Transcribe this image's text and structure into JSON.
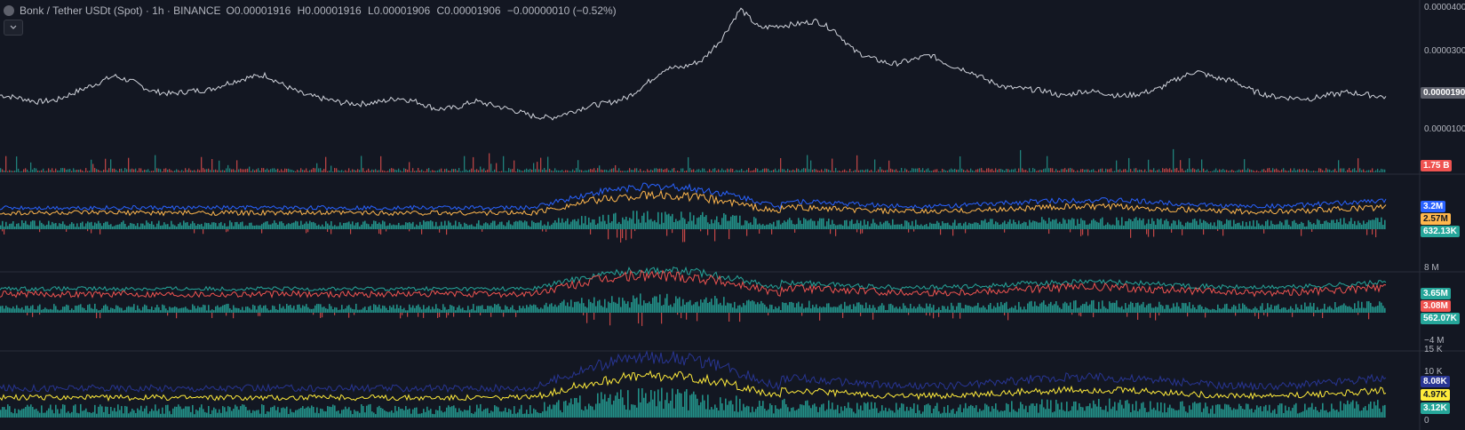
{
  "legend": {
    "title": "Bonk / Tether USDt (Spot) · 1h · BINANCE",
    "open_label": "O",
    "open": "0.00001916",
    "high_label": "H",
    "high": "0.00001916",
    "low_label": "L",
    "low": "0.00001906",
    "close_label": "C",
    "close": "0.00001906",
    "change": "−0.00000010 (−0.52%)"
  },
  "price_axis": {
    "ticks": [
      "0.0000400",
      "0.0000300",
      "0.0000100"
    ],
    "current_price": "0.0000190",
    "volume_label": "1.75 B"
  },
  "pane2": {
    "badges": [
      "3.2M",
      "2.57M",
      "632.13K"
    ]
  },
  "pane3": {
    "tick_top": "8 M",
    "tick_bottom": "−4 M",
    "badges": [
      "3.65M",
      "3.08M",
      "562.07K"
    ]
  },
  "pane4": {
    "ticks": [
      "15 K",
      "10 K",
      "0"
    ],
    "badges": [
      "8.08K",
      "4.97K",
      "3.12K"
    ]
  },
  "colors": {
    "background": "#131722",
    "price_line": "#d1d4dc",
    "volume_up": "#26a69a",
    "volume_down": "#ef5350",
    "blue": "#2962ff",
    "orange": "#ffb74d",
    "teal": "#26a69a",
    "red": "#ef5350",
    "navy": "#283593",
    "yellow": "#ffeb3b"
  },
  "chart_data": {
    "type": "line",
    "series": [
      {
        "values": [
          1.95,
          1.88,
          1.78,
          1.83,
          2.03,
          2.22,
          2.43,
          2.28,
          2.05,
          1.98,
          2.05,
          2.08,
          2.25,
          2.38,
          2.45,
          2.18,
          1.96,
          1.86,
          1.76,
          1.73,
          1.78,
          1.88,
          1.78,
          1.6,
          1.63,
          1.8,
          1.69,
          1.58,
          1.43,
          1.38,
          1.52,
          1.68,
          1.75,
          1.88,
          2.22,
          2.6,
          2.65,
          2.82,
          3.35,
          4.1,
          3.62,
          3.68,
          3.72,
          3.8,
          3.55,
          3.05,
          2.85,
          2.72,
          2.82,
          2.95,
          2.7,
          2.56,
          2.32,
          2.14,
          2.1,
          2.06,
          1.92,
          2.05,
          2.02,
          1.92,
          1.98,
          2.1,
          2.35,
          2.55,
          2.38,
          2.3,
          2.05,
          1.92,
          1.88,
          1.86,
          1.95,
          2.02,
          1.96,
          1.9
        ]
      }
    ],
    "ylim": [
      0,
      4.1
    ]
  }
}
